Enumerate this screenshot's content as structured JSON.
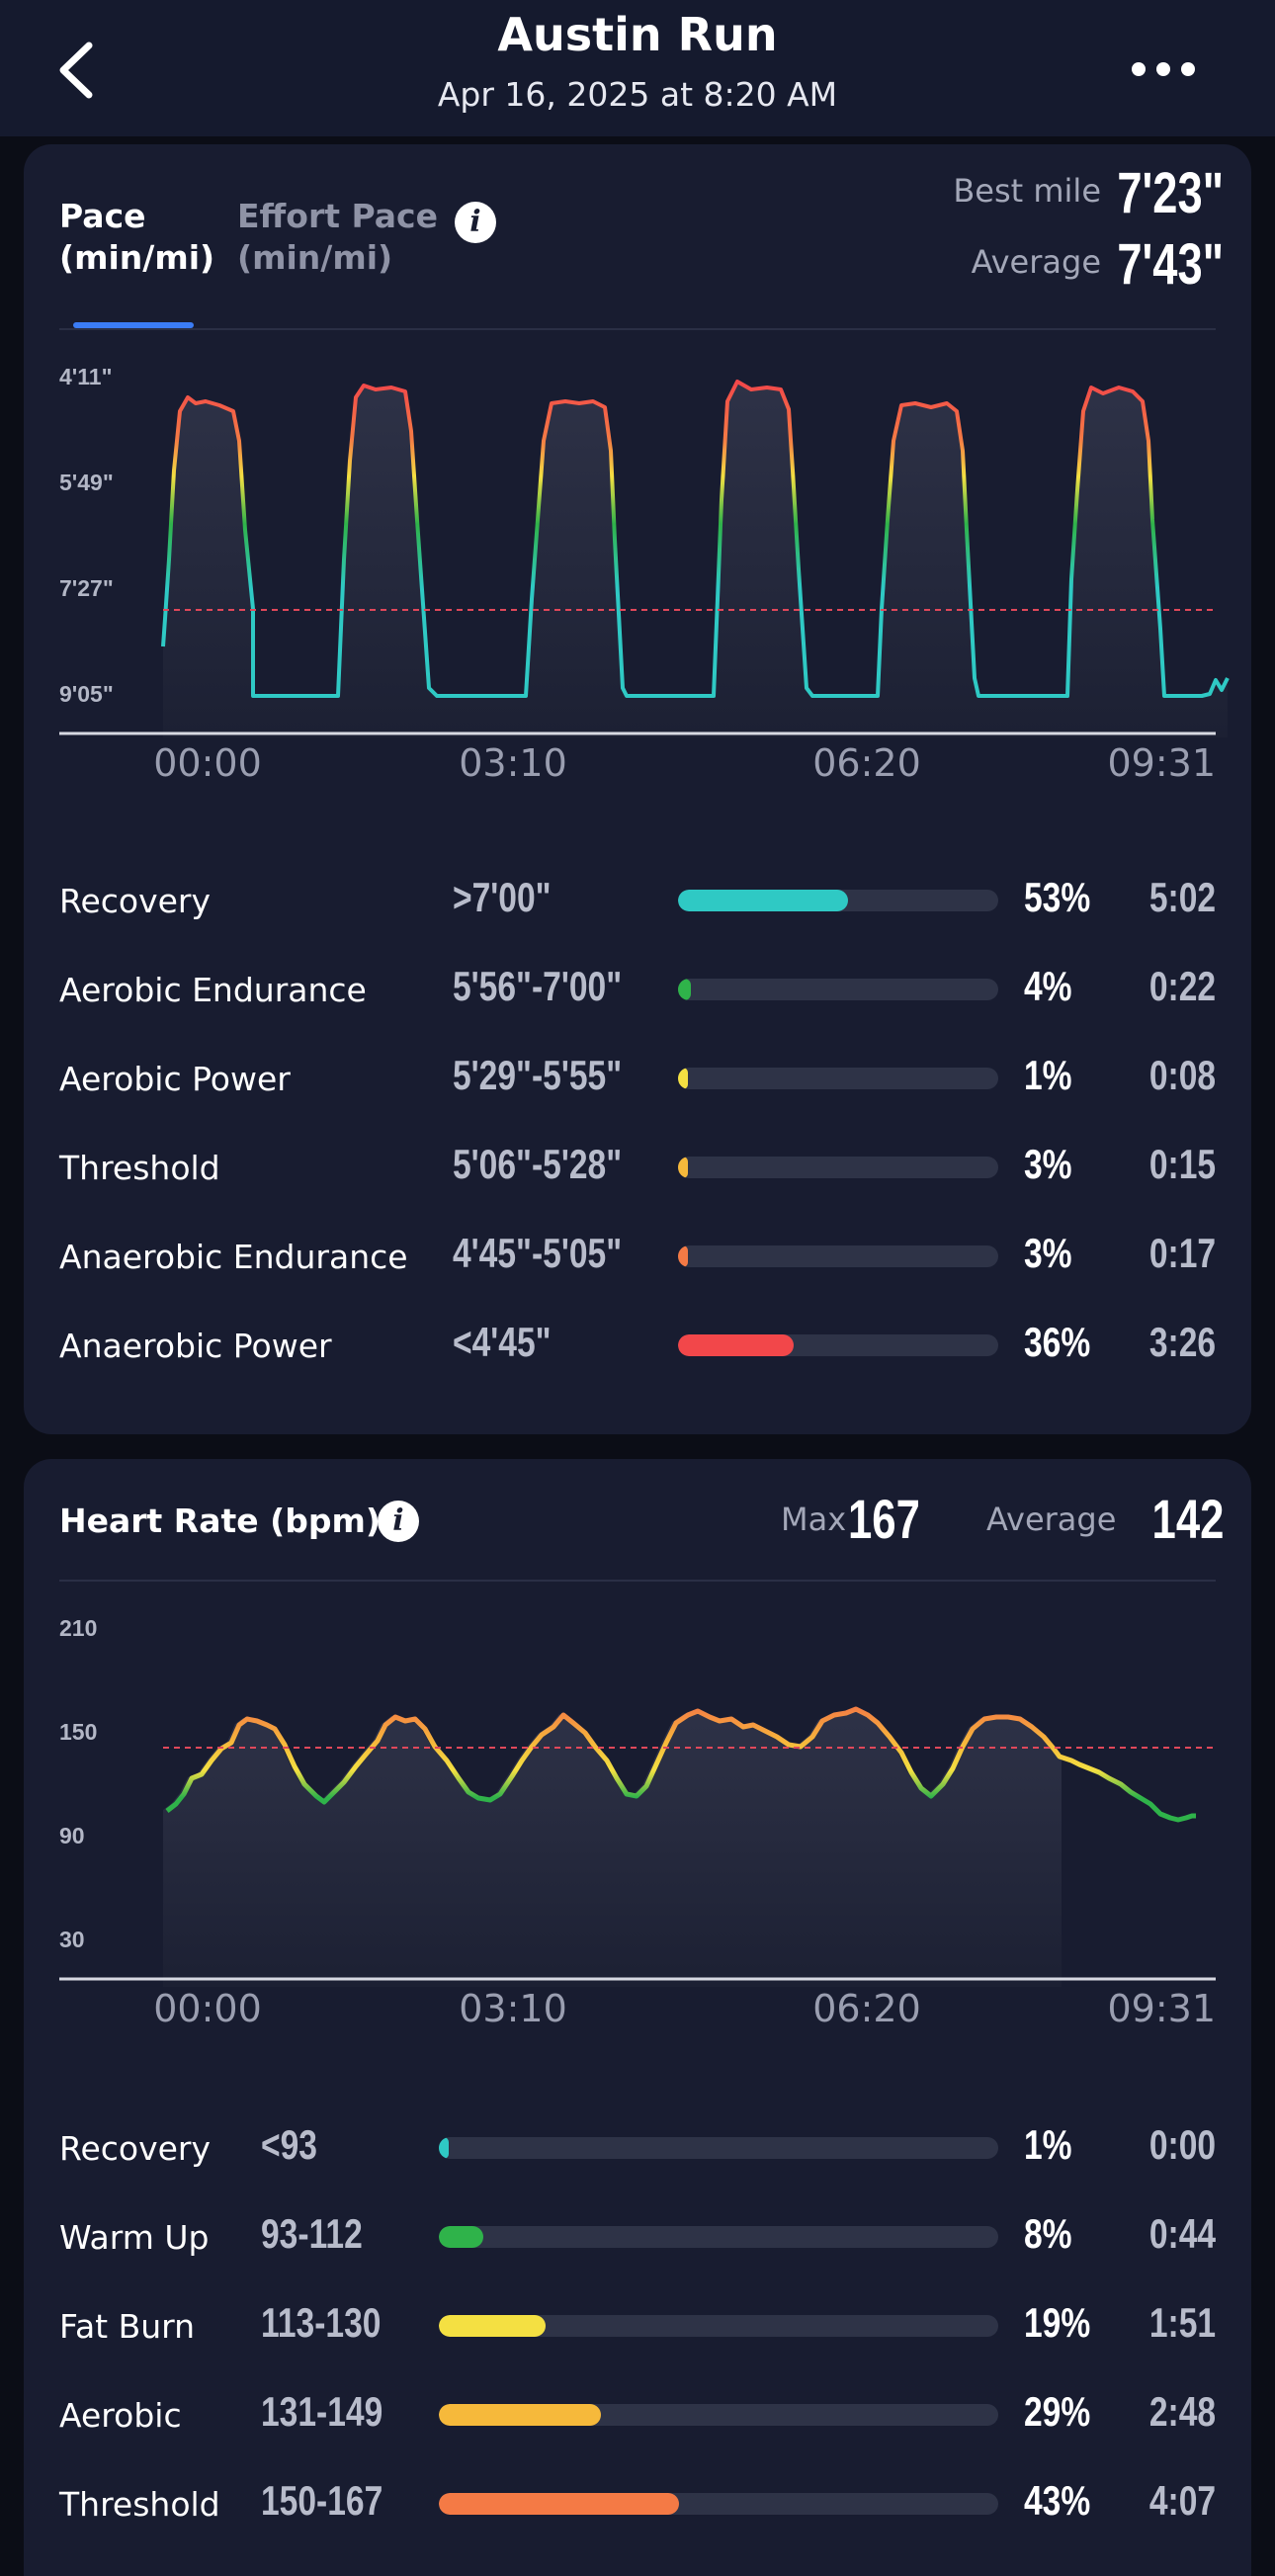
{
  "header": {
    "title": "Austin Run",
    "subtitle": "Apr 16, 2025 at 8:20 AM"
  },
  "pace": {
    "tabs": [
      {
        "line1": "Pace",
        "line2": "(min/mi)",
        "active": true
      },
      {
        "line1": "Effort Pace",
        "line2": "(min/mi)",
        "active": false
      }
    ],
    "best_label": "Best mile",
    "best_value": "7'23\"",
    "avg_label": "Average",
    "avg_value": "7'43\"",
    "y_ticks": [
      "4'11\"",
      "5'49\"",
      "7'27\"",
      "9'05\""
    ],
    "x_ticks": [
      "00:00",
      "03:10",
      "06:20",
      "09:31"
    ],
    "zones": [
      {
        "name": "Recovery",
        "range": ">7'00\"",
        "pct": "53%",
        "time": "5:02",
        "fraction": 0.53,
        "color": "#2fc9c4"
      },
      {
        "name": "Aerobic Endurance",
        "range": "5'56\"-7'00\"",
        "pct": "4%",
        "time": "0:22",
        "fraction": 0.04,
        "color": "#2fb34a"
      },
      {
        "name": "Aerobic Power",
        "range": "5'29\"-5'55\"",
        "pct": "1%",
        "time": "0:08",
        "fraction": 0.01,
        "color": "#f4e042"
      },
      {
        "name": "Threshold",
        "range": "5'06\"-5'28\"",
        "pct": "3%",
        "time": "0:15",
        "fraction": 0.03,
        "color": "#f6b93b"
      },
      {
        "name": "Anaerobic Endurance",
        "range": "4'45\"-5'05\"",
        "pct": "3%",
        "time": "0:17",
        "fraction": 0.03,
        "color": "#f47a45"
      },
      {
        "name": "Anaerobic Power",
        "range": "<4'45\"",
        "pct": "36%",
        "time": "3:26",
        "fraction": 0.36,
        "color": "#f2474a"
      }
    ]
  },
  "heart_rate": {
    "title": "Heart Rate (bpm)",
    "max_label": "Max",
    "max_value": "167",
    "avg_label": "Average",
    "avg_value": "142",
    "y_ticks": [
      "210",
      "150",
      "90",
      "30"
    ],
    "x_ticks": [
      "00:00",
      "03:10",
      "06:20",
      "09:31"
    ],
    "zones": [
      {
        "name": "Recovery",
        "range": "<93",
        "pct": "1%",
        "time": "0:00",
        "fraction": 0.01,
        "color": "#2fc9c4"
      },
      {
        "name": "Warm Up",
        "range": "93-112",
        "pct": "8%",
        "time": "0:44",
        "fraction": 0.08,
        "color": "#2fb34a"
      },
      {
        "name": "Fat Burn",
        "range": "113-130",
        "pct": "19%",
        "time": "1:51",
        "fraction": 0.19,
        "color": "#f4e042"
      },
      {
        "name": "Aerobic",
        "range": "131-149",
        "pct": "29%",
        "time": "2:48",
        "fraction": 0.29,
        "color": "#f6b93b"
      },
      {
        "name": "Threshold",
        "range": "150-167",
        "pct": "43%",
        "time": "4:07",
        "fraction": 0.43,
        "color": "#f47a45"
      }
    ]
  }
}
